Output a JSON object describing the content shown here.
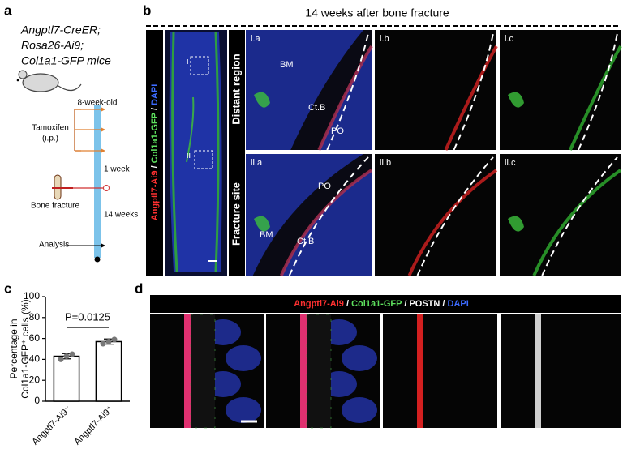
{
  "panel_labels": [
    "a",
    "b",
    "c",
    "d"
  ],
  "panel_a": {
    "mouse_lines": [
      "Angptl7-CreER;",
      "Rosa26-Ai9;",
      "Col1a1-GFP mice"
    ],
    "timeline": {
      "start": "8-week-old",
      "treatment": [
        "Tamoxifen",
        "(i.p.)"
      ],
      "interval_1": "1 week",
      "event": "Bone fracture",
      "interval_2": "14 weeks",
      "end": "Analysis"
    }
  },
  "panel_b": {
    "title": "14 weeks after bone fracture",
    "channel_label": [
      {
        "text": "Angptl7-Ai9",
        "color": "#ff3030"
      },
      {
        "text": " / ",
        "color": "#ffffff"
      },
      {
        "text": "Col1a1-GFP",
        "color": "#5ee05e"
      },
      {
        "text": " / ",
        "color": "#ffffff"
      },
      {
        "text": "DAPI",
        "color": "#3d6bff"
      }
    ],
    "insets": [
      "i",
      "ii"
    ],
    "rows": [
      "Distant region",
      "Fracture site"
    ],
    "images": [
      [
        "i.a",
        "i.b",
        "i.c"
      ],
      [
        "ii.a",
        "ii.b",
        "ii.c"
      ]
    ],
    "annotations": [
      [
        "BM",
        "Ct.B",
        "PO"
      ],
      [
        "PO",
        "Ct.B",
        "BM"
      ]
    ]
  },
  "chart_data": {
    "type": "bar",
    "y_label": [
      "Percentage in",
      "Col1a1-GFP⁺ cells (%)"
    ],
    "categories": [
      "Angptl7-Ai9⁻",
      "Angptl7-Ai9⁺"
    ],
    "values": [
      43,
      57
    ],
    "errors": [
      2.5,
      2.5
    ],
    "points": [
      [
        40,
        43,
        45
      ],
      [
        55,
        57,
        59
      ]
    ],
    "color": "#ffffff",
    "ylim": [
      0,
      100
    ],
    "yticks": [
      0,
      20,
      40,
      60,
      80,
      100
    ],
    "annotation": "P=0.0125"
  },
  "panel_d": {
    "channel_label": [
      {
        "text": "Angptl7-Ai9",
        "color": "#ff3030"
      },
      {
        "text": " / ",
        "color": "#ffffff"
      },
      {
        "text": "Col1a1-GFP",
        "color": "#5ee05e"
      },
      {
        "text": " / ",
        "color": "#ffffff"
      },
      {
        "text": "POSTN",
        "color": "#ffffff"
      },
      {
        "text": " / ",
        "color": "#ffffff"
      },
      {
        "text": "DAPI",
        "color": "#3d6bff"
      }
    ]
  }
}
